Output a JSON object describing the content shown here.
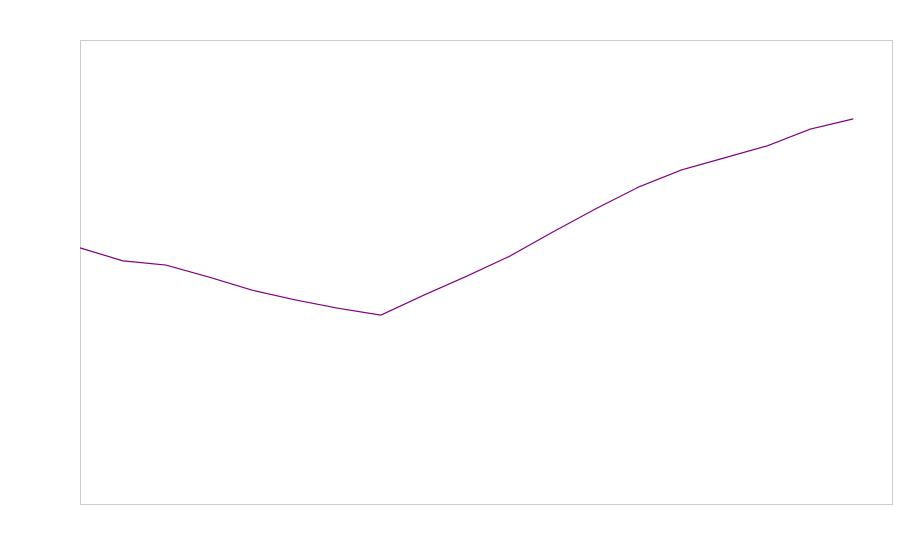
{
  "chart_data": {
    "type": "line",
    "x": [
      0,
      1,
      2,
      3,
      4,
      5,
      6,
      7,
      8,
      9,
      10,
      11,
      12,
      13,
      14,
      15,
      16,
      17,
      18
    ],
    "values": [
      55.2,
      52.4,
      51.5,
      48.9,
      46.1,
      44.0,
      42.2,
      40.7,
      45.0,
      49.1,
      53.4,
      58.6,
      63.6,
      68.3,
      72.0,
      74.6,
      77.2,
      80.8,
      83.0
    ],
    "color": "#800080",
    "xlim": [
      0,
      18.9
    ],
    "ylim": [
      0,
      100
    ]
  }
}
